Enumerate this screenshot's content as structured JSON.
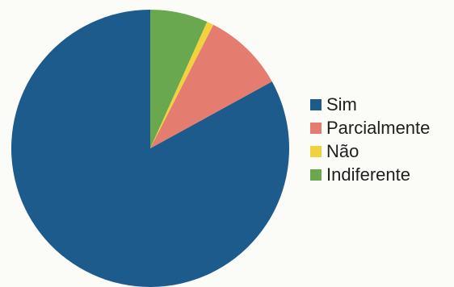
{
  "chart_data": {
    "type": "pie",
    "title": "",
    "legend_position": "right",
    "slices": [
      {
        "label": "Sim",
        "value": 83.0,
        "color": "#1d5b8d"
      },
      {
        "label": "Parcialmente",
        "value": 9.5,
        "color": "#e47c70"
      },
      {
        "label": "Não",
        "value": 0.8,
        "color": "#f2d23c"
      },
      {
        "label": "Indiferente",
        "value": 6.7,
        "color": "#6aa84f"
      }
    ]
  }
}
